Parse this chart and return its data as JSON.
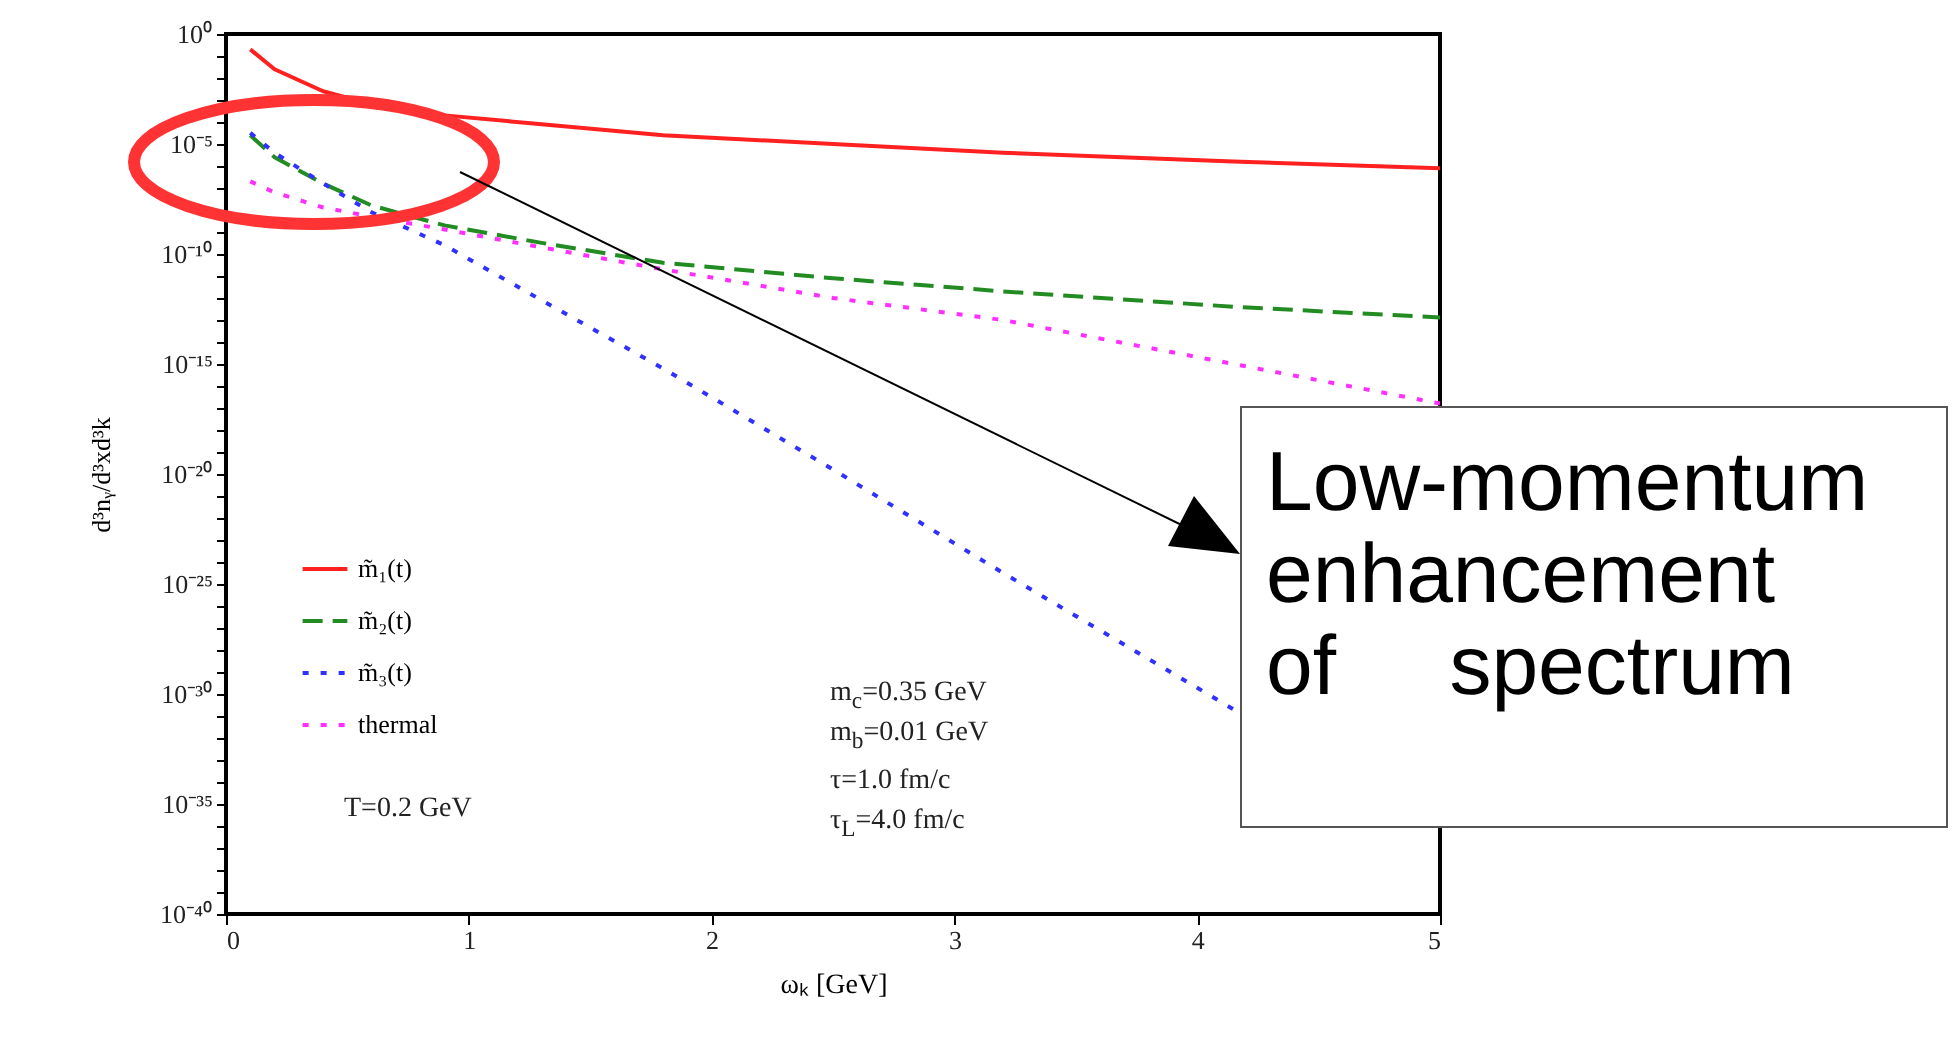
{
  "chart_data": {
    "type": "line",
    "xlabel": "ωₖ [GeV]",
    "ylabel": "d³nᵧ/d³xd³k",
    "x": [
      0.1,
      0.2,
      0.4,
      0.6,
      0.9,
      1.3,
      1.8,
      2.5,
      3.2,
      4.15,
      5
    ],
    "series": [
      {
        "name": "m̃₁(t)",
        "color": "#ff2020",
        "line_style": "solid",
        "values": [
          0.2,
          0.025,
          0.0025,
          0.00063,
          0.0002,
          7.9e-05,
          2.5e-05,
          1e-05,
          4e-06,
          1.6e-06,
          7.9e-07
        ]
      },
      {
        "name": "m̃₂(t)",
        "color": "#228b22",
        "line_style": "dashed",
        "values": [
          2.5e-05,
          2.5e-06,
          1.6e-07,
          1.6e-08,
          2e-09,
          3.2e-10,
          4e-11,
          7.9e-12,
          2e-12,
          4e-13,
          1.3e-13
        ]
      },
      {
        "name": "m̃₃(t)",
        "color": "#3030ff",
        "line_style": "dotted",
        "values": [
          3.2e-05,
          4e-06,
          1.6e-07,
          7.9e-09,
          2.5e-10,
          7.9e-13,
          6.3e-16,
          1.6e-20,
          3.2e-25,
          2e-31,
          null
        ]
      },
      {
        "name": "thermal",
        "color": "#ff30ff",
        "line_style": "dotted",
        "values": [
          2e-07,
          6.3e-08,
          1.3e-08,
          5e-09,
          1.3e-09,
          2e-10,
          2e-11,
          1e-12,
          1e-13,
          1e-15,
          1.6e-17
        ]
      }
    ],
    "log": "y",
    "grid": false,
    "legend": "left",
    "xlim": [
      0,
      5
    ],
    "xticks": [
      0,
      1,
      2,
      3,
      4,
      5
    ],
    "ylim": [
      1e-40,
      1
    ],
    "yticks": [
      {
        "value": 1,
        "label": "10⁰"
      },
      {
        "value": 0.1,
        "label": null
      },
      {
        "value": 0.01,
        "label": null
      },
      {
        "value": 0.001,
        "label": null
      },
      {
        "value": 0.0001,
        "label": null
      },
      {
        "value": 1e-05,
        "label": "10⁻⁵"
      },
      {
        "value": 1e-06,
        "label": null
      },
      {
        "value": 1e-07,
        "label": null
      },
      {
        "value": 1e-08,
        "label": null
      },
      {
        "value": 1e-09,
        "label": null
      },
      {
        "value": 1e-10,
        "label": "10⁻¹⁰"
      },
      {
        "value": 1e-11,
        "label": null
      },
      {
        "value": 1e-12,
        "label": null
      },
      {
        "value": 1e-13,
        "label": null
      },
      {
        "value": 1e-14,
        "label": null
      },
      {
        "value": 1e-15,
        "label": "10⁻¹⁵"
      },
      {
        "value": 1e-16,
        "label": null
      },
      {
        "value": 1e-17,
        "label": null
      },
      {
        "value": 1e-18,
        "label": null
      },
      {
        "value": 1e-19,
        "label": null
      },
      {
        "value": 1e-20,
        "label": "10⁻²⁰"
      },
      {
        "value": 1e-21,
        "label": null
      },
      {
        "value": 1e-22,
        "label": null
      },
      {
        "value": 1e-23,
        "label": null
      },
      {
        "value": 1e-24,
        "label": null
      },
      {
        "value": 1e-25,
        "label": "10⁻²⁵"
      },
      {
        "value": 1e-26,
        "label": null
      },
      {
        "value": 1e-27,
        "label": null
      },
      {
        "value": 1e-28,
        "label": null
      },
      {
        "value": 1e-29,
        "label": null
      },
      {
        "value": 1e-30,
        "label": "10⁻³⁰"
      },
      {
        "value": 1e-31,
        "label": null
      },
      {
        "value": 1e-32,
        "label": null
      },
      {
        "value": 1e-33,
        "label": null
      },
      {
        "value": 1e-34,
        "label": null
      },
      {
        "value": 1e-35,
        "label": "10⁻³⁵"
      },
      {
        "value": 1e-36,
        "label": null
      },
      {
        "value": 1e-37,
        "label": null
      },
      {
        "value": 1e-38,
        "label": null
      },
      {
        "value": 1e-39,
        "label": null
      },
      {
        "value": 1e-40,
        "label": "10⁻⁴⁰"
      }
    ],
    "annotations": [
      "m$_{c}$=0.35 GeV",
      "m$_{b}$=0.01 GeV",
      "τ=1.0 fm/c",
      "τ$_{L}$=4.0 fm/c",
      "T=0.2 GeV",
      "Low-momentum enhancement of spectrum"
    ]
  }
}
